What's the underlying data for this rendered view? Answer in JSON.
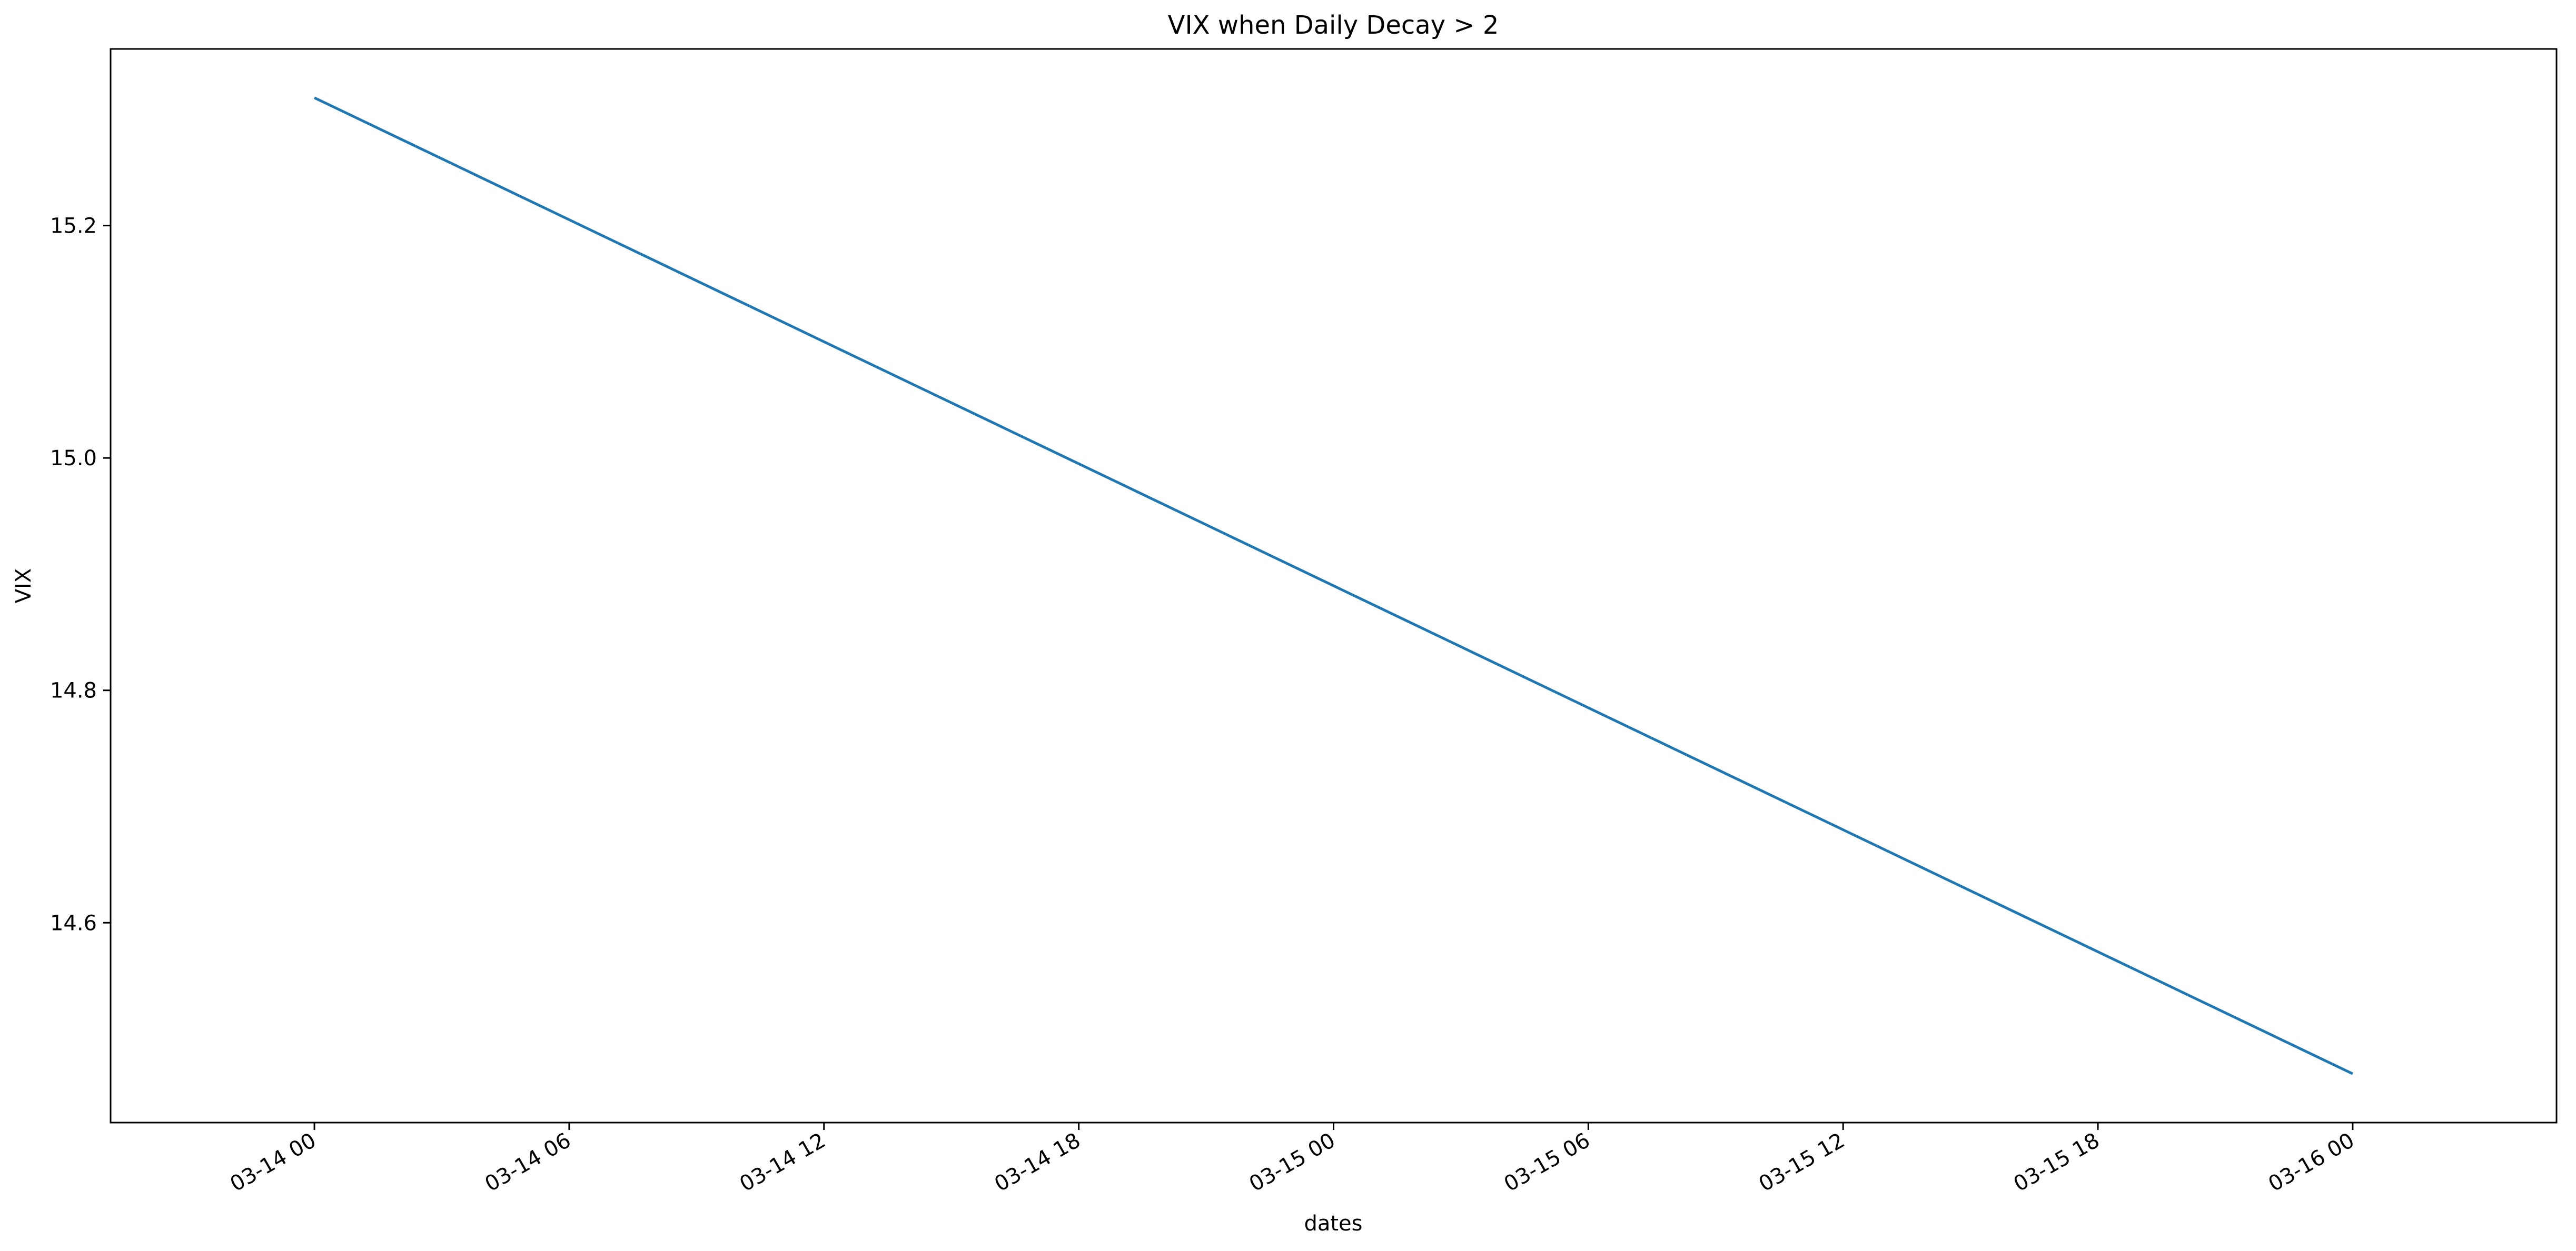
{
  "chart_data": {
    "type": "line",
    "title": "VIX when Daily Decay > 2",
    "xlabel": "dates",
    "ylabel": "VIX",
    "x_type": "datetime",
    "x": [
      "2023-03-14 00:00",
      "2023-03-16 00:00"
    ],
    "series": [
      {
        "values": [
          15.31,
          14.47
        ],
        "color": "#1f77b4"
      }
    ],
    "xlim": [
      "2023-03-13 19:12",
      "2023-03-16 04:48"
    ],
    "ylim": [
      14.428,
      15.352
    ],
    "xticks": [
      {
        "value": "2023-03-14 00:00",
        "label": "03-14 00"
      },
      {
        "value": "2023-03-14 06:00",
        "label": "03-14 06"
      },
      {
        "value": "2023-03-14 12:00",
        "label": "03-14 12"
      },
      {
        "value": "2023-03-14 18:00",
        "label": "03-14 18"
      },
      {
        "value": "2023-03-15 00:00",
        "label": "03-15 00"
      },
      {
        "value": "2023-03-15 06:00",
        "label": "03-15 06"
      },
      {
        "value": "2023-03-15 12:00",
        "label": "03-15 12"
      },
      {
        "value": "2023-03-15 18:00",
        "label": "03-15 18"
      },
      {
        "value": "2023-03-16 00:00",
        "label": "03-16 00"
      }
    ],
    "yticks": [
      {
        "value": 14.6,
        "label": "14.6"
      },
      {
        "value": 14.8,
        "label": "14.8"
      },
      {
        "value": 15.0,
        "label": "15.0"
      },
      {
        "value": 15.2,
        "label": "15.2"
      }
    ],
    "grid": false,
    "legend": false
  }
}
